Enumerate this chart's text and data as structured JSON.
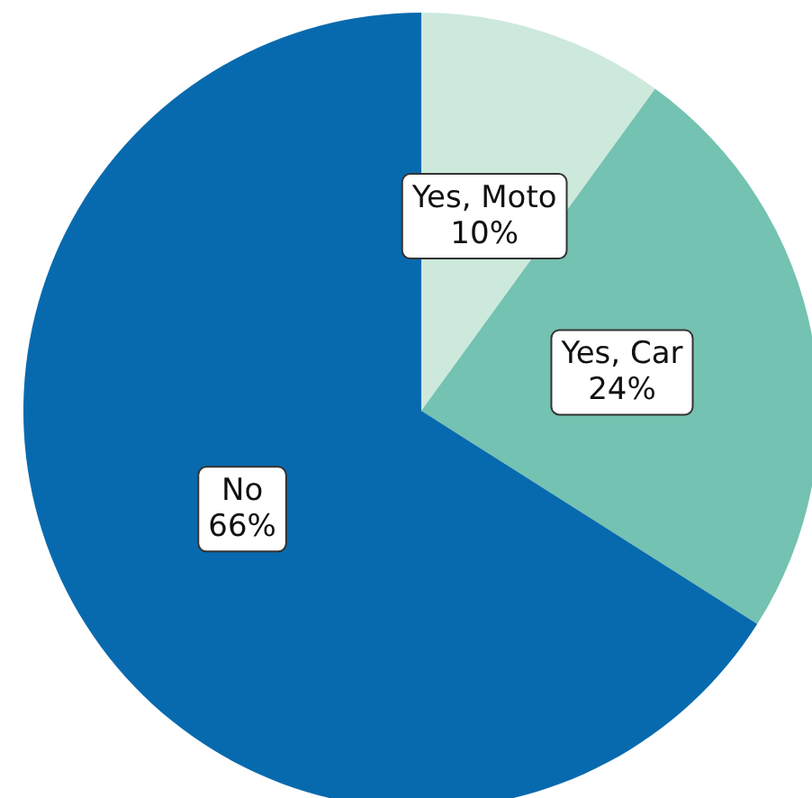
{
  "chart_data": {
    "type": "pie",
    "categories": [
      "Yes, Moto",
      "Yes, Car",
      "No"
    ],
    "values": [
      10,
      24,
      66
    ],
    "colors": [
      "#cce9dc",
      "#74c2b1",
      "#086aae"
    ],
    "value_labels": [
      "10%",
      "24%",
      "66%"
    ]
  }
}
